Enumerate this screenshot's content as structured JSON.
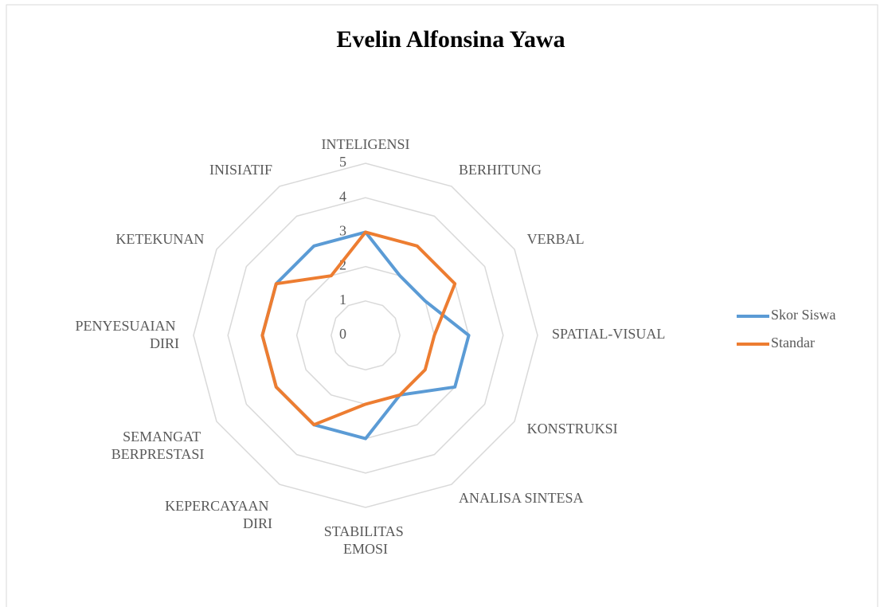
{
  "chart_data": {
    "type": "radar",
    "title": "Evelin Alfonsina Yawa",
    "categories": [
      "INTELIGENSI",
      "BERHITUNG",
      "VERBAL",
      "SPATIAL-VISUAL",
      "KONSTRUKSI",
      "ANALISA SINTESA",
      "STABILITAS EMOSI",
      "KEPERCAYAAN DIRI",
      "SEMANGAT BERPRESTASI",
      "PENYESUAIAN DIRI",
      "KETEKUNAN",
      "INISIATIF"
    ],
    "series": [
      {
        "name": "Skor Siswa",
        "color": "#5b9bd5",
        "values": [
          3,
          2,
          2,
          3,
          3,
          2,
          3,
          3,
          3,
          3,
          3,
          3
        ]
      },
      {
        "name": "Standar",
        "color": "#ed7d31",
        "values": [
          3,
          3,
          3,
          2,
          2,
          2,
          2,
          3,
          3,
          3,
          3,
          2
        ]
      }
    ],
    "ylim": [
      0,
      5
    ],
    "yticks": [
      0,
      1,
      2,
      3,
      4,
      5
    ],
    "grid": true,
    "legend": "right"
  }
}
